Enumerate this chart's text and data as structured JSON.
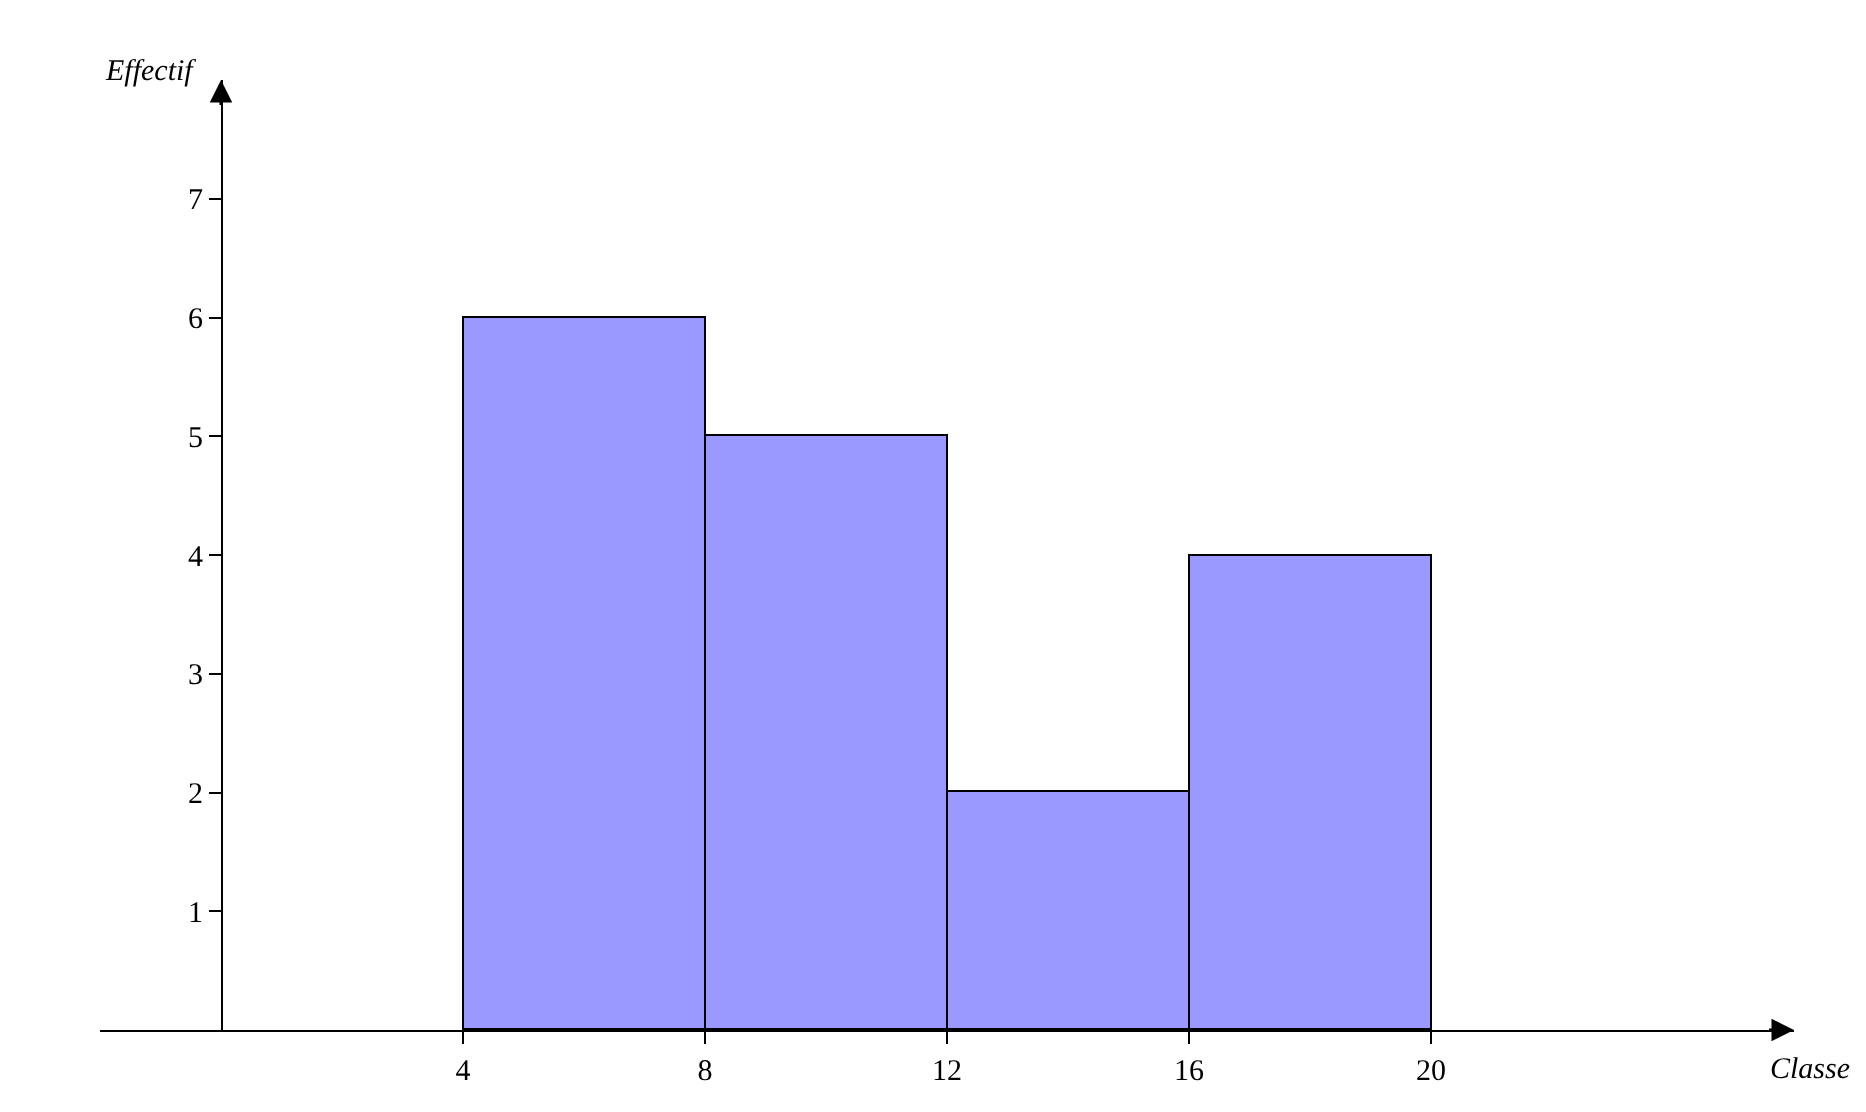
{
  "chart_data": {
    "type": "histogram",
    "xlabel": "Classe",
    "ylabel": "Effectif",
    "bins": [
      4,
      8,
      12,
      16,
      20
    ],
    "values": [
      6,
      5,
      2,
      4
    ],
    "color": "#9999ff",
    "xlim": [
      -2,
      26
    ],
    "ylim": [
      0,
      8
    ],
    "xticks": [
      4,
      8,
      12,
      16,
      20
    ],
    "yticks": [
      1,
      2,
      3,
      4,
      5,
      6,
      7
    ]
  }
}
